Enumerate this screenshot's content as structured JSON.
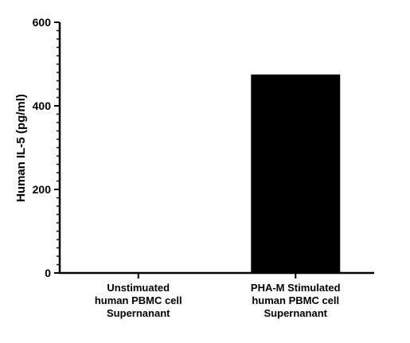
{
  "chart_data": {
    "type": "bar",
    "categories": [
      [
        "Unstimuated",
        "human PBMC cell",
        "Supernanant"
      ],
      [
        "PHA-M Stimulated",
        "human PBMC cell",
        "Supernanant"
      ]
    ],
    "values": [
      0,
      475
    ],
    "ylabel": "Human IL-5  (pg/ml)",
    "xlabel": "",
    "ylim": [
      0,
      600
    ],
    "yticks": [
      0,
      200,
      400,
      600
    ],
    "yminor_step": 20,
    "bar_color": "#000000",
    "grid": false,
    "legend": "none"
  }
}
